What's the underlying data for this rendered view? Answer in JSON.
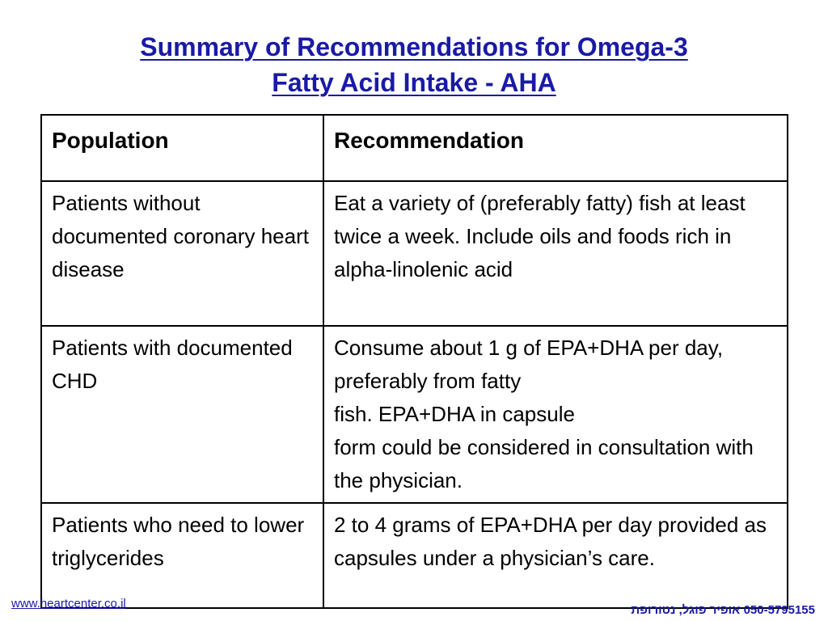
{
  "title": {
    "line1": "Summary of Recommendations for Omega-3 ",
    "line2": "Fatty Acid Intake - AHA"
  },
  "table": {
    "headers": [
      "Population",
      "Recommendation"
    ],
    "rows": [
      {
        "population": "Patients without documented coronary heart disease",
        "recommendation": "Eat a variety of (preferably fatty) fish at least twice a week. Include oils and foods rich in alpha-linolenic acid"
      },
      {
        "population": "Patients with documented CHD",
        "recommendation": "Consume about 1 g of EPA+DHA per day, preferably from fatty\nfish.  EPA+DHA in capsule\nform could be considered in consultation with the physician."
      },
      {
        "population": "Patients who need to lower triglycerides",
        "recommendation": "2 to 4 grams of EPA+DHA per day provided as capsules under a physician’s care."
      }
    ]
  },
  "footer": {
    "link": "www.heartcenter.co.il",
    "contact": "050-5795155 אופיר פוגל, נטורופת"
  },
  "colors": {
    "title": "#1a1aa6",
    "link": "#1a1aa6",
    "border": "#000000"
  }
}
